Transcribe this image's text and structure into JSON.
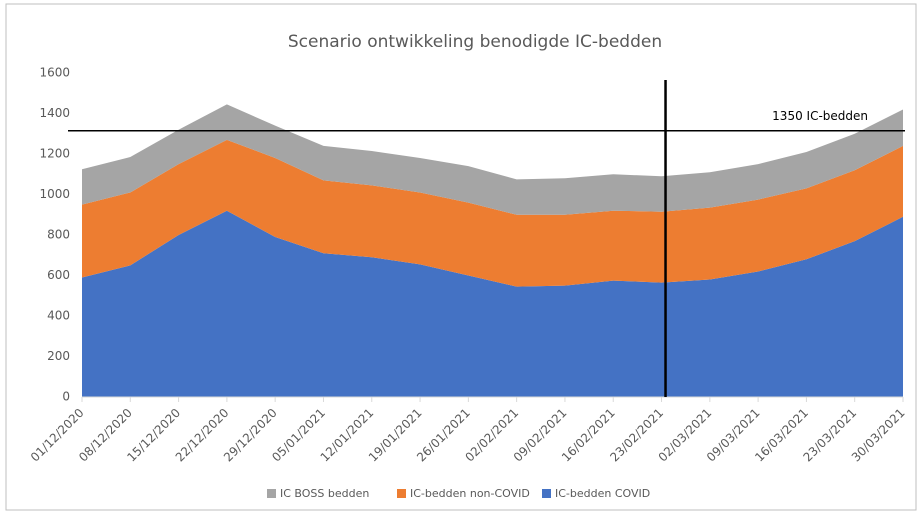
{
  "chart_data": {
    "type": "stacked_area",
    "title": "Scenario ontwikkeling benodigde IC-bedden",
    "x": [
      "01/12/2020",
      "08/12/2020",
      "15/12/2020",
      "22/12/2020",
      "29/12/2020",
      "05/01/2021",
      "12/01/2021",
      "19/01/2021",
      "26/01/2021",
      "02/02/2021",
      "09/02/2021",
      "16/02/2021",
      "23/02/2021",
      "02/03/2021",
      "09/03/2021",
      "16/03/2021",
      "23/03/2021",
      "30/03/2021"
    ],
    "series": [
      {
        "name": "IC-bedden COVID",
        "color": "#4472c4",
        "values": [
          590,
          650,
          800,
          920,
          790,
          710,
          690,
          655,
          600,
          545,
          550,
          575,
          565,
          580,
          620,
          680,
          770,
          890
        ]
      },
      {
        "name": "IC-bedden non-COVID",
        "color": "#ed7d31",
        "values": [
          360,
          360,
          350,
          350,
          390,
          360,
          355,
          355,
          360,
          355,
          350,
          345,
          350,
          355,
          355,
          350,
          350,
          350
        ]
      },
      {
        "name": "IC BOSS bedden",
        "color": "#a5a5a5",
        "values": [
          175,
          175,
          170,
          175,
          160,
          170,
          170,
          170,
          180,
          175,
          180,
          180,
          175,
          175,
          175,
          180,
          180,
          180
        ]
      }
    ],
    "ylim": [
      0,
      1600
    ],
    "yticks": [
      0,
      200,
      400,
      600,
      800,
      1000,
      1200,
      1400,
      1600
    ],
    "hline": 1315,
    "annotation": "1350 IC-bedden",
    "vline": "23/02/2021",
    "legend": "bottom"
  }
}
